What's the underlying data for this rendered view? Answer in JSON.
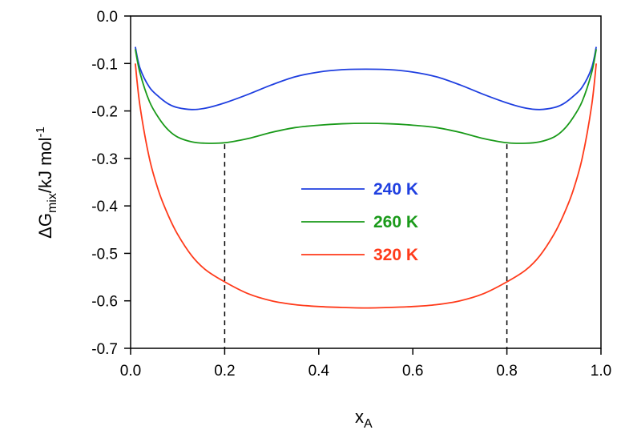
{
  "chart_data": {
    "type": "line",
    "title": "",
    "xlabel": "x",
    "xlabel_sub": "A",
    "ylabel": "ΔG",
    "ylabel_sub": "mix",
    "ylabel_unit": "/kJ mol",
    "ylabel_sup": "-1",
    "xlim": [
      0.0,
      1.0
    ],
    "ylim": [
      -0.7,
      0.0
    ],
    "xticks": [
      "0.0",
      "0.2",
      "0.4",
      "0.6",
      "0.8",
      "1.0"
    ],
    "yticks": [
      "0.0",
      "-0.1",
      "-0.2",
      "-0.3",
      "-0.4",
      "-0.5",
      "-0.6",
      "-0.7"
    ],
    "grid": false,
    "legend_position": "center",
    "series": [
      {
        "name": "240 K",
        "color": "#1f3fe0",
        "x": [
          0.01,
          0.02,
          0.04,
          0.06,
          0.08,
          0.1,
          0.13,
          0.16,
          0.2,
          0.25,
          0.3,
          0.35,
          0.4,
          0.45,
          0.5,
          0.55,
          0.6,
          0.65,
          0.7,
          0.75,
          0.8,
          0.84,
          0.87,
          0.9,
          0.92,
          0.94,
          0.96,
          0.98,
          0.99
        ],
        "y": [
          -0.065,
          -0.11,
          -0.15,
          -0.17,
          -0.185,
          -0.193,
          -0.197,
          -0.194,
          -0.183,
          -0.165,
          -0.145,
          -0.128,
          -0.118,
          -0.113,
          -0.112,
          -0.113,
          -0.118,
          -0.128,
          -0.145,
          -0.165,
          -0.183,
          -0.194,
          -0.197,
          -0.193,
          -0.185,
          -0.17,
          -0.15,
          -0.11,
          -0.065
        ]
      },
      {
        "name": "260 K",
        "color": "#1a9a1a",
        "x": [
          0.01,
          0.02,
          0.04,
          0.06,
          0.08,
          0.1,
          0.13,
          0.16,
          0.2,
          0.25,
          0.3,
          0.35,
          0.4,
          0.45,
          0.5,
          0.55,
          0.6,
          0.65,
          0.7,
          0.75,
          0.8,
          0.84,
          0.87,
          0.9,
          0.92,
          0.94,
          0.96,
          0.98,
          0.99
        ],
        "y": [
          -0.07,
          -0.12,
          -0.18,
          -0.215,
          -0.24,
          -0.255,
          -0.265,
          -0.268,
          -0.267,
          -0.258,
          -0.245,
          -0.235,
          -0.23,
          -0.227,
          -0.226,
          -0.227,
          -0.23,
          -0.235,
          -0.245,
          -0.258,
          -0.267,
          -0.268,
          -0.265,
          -0.255,
          -0.24,
          -0.215,
          -0.18,
          -0.12,
          -0.07
        ]
      },
      {
        "name": "320 K",
        "color": "#ff3a1a",
        "x": [
          0.01,
          0.02,
          0.04,
          0.06,
          0.08,
          0.1,
          0.13,
          0.16,
          0.2,
          0.25,
          0.3,
          0.35,
          0.4,
          0.45,
          0.5,
          0.55,
          0.6,
          0.65,
          0.7,
          0.75,
          0.8,
          0.84,
          0.87,
          0.9,
          0.92,
          0.94,
          0.96,
          0.98,
          0.99
        ],
        "y": [
          -0.1,
          -0.19,
          -0.3,
          -0.37,
          -0.42,
          -0.46,
          -0.505,
          -0.535,
          -0.56,
          -0.585,
          -0.6,
          -0.608,
          -0.612,
          -0.614,
          -0.615,
          -0.614,
          -0.612,
          -0.608,
          -0.6,
          -0.585,
          -0.56,
          -0.535,
          -0.505,
          -0.46,
          -0.42,
          -0.37,
          -0.3,
          -0.19,
          -0.1
        ]
      }
    ],
    "reference_lines": [
      {
        "x": 0.2,
        "y_top": -0.27,
        "style": "dashed"
      },
      {
        "x": 0.8,
        "y_top": -0.27,
        "style": "dashed"
      }
    ]
  }
}
